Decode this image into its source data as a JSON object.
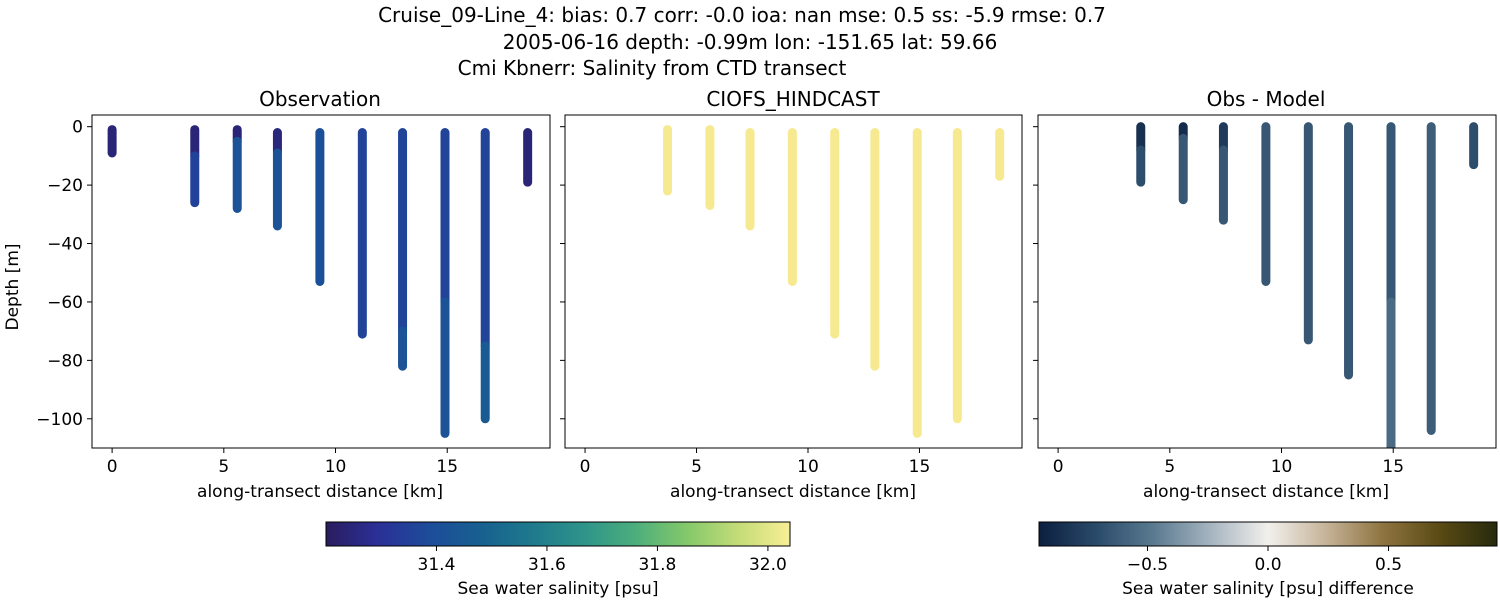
{
  "figure": {
    "title_lines": [
      "Cruise_09-Line_4: bias: 0.7  corr: -0.0  ioa: nan  mse: 0.5  ss: -5.9  rmse: 0.7",
      "2005-06-16 depth: -0.99m lon: -151.65 lat: 59.66",
      "Cmi Kbnerr: Salinity from CTD transect"
    ]
  },
  "colors": {
    "salinity_cmap": [
      "#2a1d5e",
      "#2b2f97",
      "#1d4c9a",
      "#176090",
      "#1e7a8c",
      "#2e948a",
      "#4cae7c",
      "#84c86a",
      "#c4dc78",
      "#f8ee96"
    ],
    "diff_cmap": [
      "#0c1f3f",
      "#2a4a6a",
      "#5a7a90",
      "#a6b4c0",
      "#f2f0ec",
      "#c6b49a",
      "#8e7440",
      "#5a4a14",
      "#262a0e"
    ],
    "model_color": "#f7e98f"
  },
  "chart_data": [
    {
      "type": "scatter",
      "title": "Observation",
      "xlabel": "along-transect distance [km]",
      "ylabel": "Depth [m]",
      "xlim": [
        -0.9,
        19.6
      ],
      "ylim": [
        -110,
        4
      ],
      "xticks": [
        0,
        5,
        10,
        15
      ],
      "yticks": [
        0,
        -20,
        -40,
        -60,
        -80,
        -100
      ],
      "series": [
        {
          "x": 0.0,
          "top": -1.0,
          "bottom": -9.0,
          "segments": [
            {
              "to": -9.0,
              "value": 31.24
            }
          ]
        },
        {
          "x": 3.7,
          "top": -1.0,
          "bottom": -26.0,
          "segments": [
            {
              "to": -10.0,
              "value": 31.24
            },
            {
              "to": -26.0,
              "value": 31.35
            }
          ]
        },
        {
          "x": 5.6,
          "top": -1.0,
          "bottom": -28.0,
          "segments": [
            {
              "to": -5.0,
              "value": 31.24
            },
            {
              "to": -28.0,
              "value": 31.42
            }
          ]
        },
        {
          "x": 7.4,
          "top": -2.0,
          "bottom": -34.0,
          "segments": [
            {
              "to": -9.0,
              "value": 31.25
            },
            {
              "to": -34.0,
              "value": 31.42
            }
          ]
        },
        {
          "x": 9.3,
          "top": -2.0,
          "bottom": -53.0,
          "segments": [
            {
              "to": -53.0,
              "value": 31.4
            }
          ]
        },
        {
          "x": 11.2,
          "top": -2.0,
          "bottom": -71.0,
          "segments": [
            {
              "to": -71.0,
              "value": 31.36
            }
          ]
        },
        {
          "x": 13.0,
          "top": -2.0,
          "bottom": -82.0,
          "segments": [
            {
              "to": -70.0,
              "value": 31.36
            },
            {
              "to": -82.0,
              "value": 31.42
            }
          ]
        },
        {
          "x": 14.9,
          "top": -2.0,
          "bottom": -105.0,
          "segments": [
            {
              "to": -60.0,
              "value": 31.36
            },
            {
              "to": -105.0,
              "value": 31.42
            }
          ]
        },
        {
          "x": 16.7,
          "top": -2.0,
          "bottom": -100.0,
          "segments": [
            {
              "to": -75.0,
              "value": 31.36
            },
            {
              "to": -100.0,
              "value": 31.45
            }
          ]
        },
        {
          "x": 18.6,
          "top": -2.0,
          "bottom": -19.0,
          "segments": [
            {
              "to": -19.0,
              "value": 31.24
            }
          ]
        }
      ],
      "colorbar": {
        "label": "Sea water salinity [psu]",
        "range": [
          31.2,
          32.04
        ],
        "ticks": [
          "31.4",
          "31.6",
          "31.8",
          "32.0"
        ]
      }
    },
    {
      "type": "scatter",
      "title": "CIOFS_HINDCAST",
      "xlabel": "along-transect distance [km]",
      "xlim": [
        -0.9,
        19.6
      ],
      "ylim": [
        -110,
        4
      ],
      "xticks": [
        0,
        5,
        10,
        15
      ],
      "series": [
        {
          "x": 3.7,
          "top": -1.0,
          "bottom": -22.0,
          "value": 32.0
        },
        {
          "x": 5.6,
          "top": -1.0,
          "bottom": -27.0,
          "value": 32.0
        },
        {
          "x": 7.4,
          "top": -2.0,
          "bottom": -34.0,
          "value": 32.0
        },
        {
          "x": 9.3,
          "top": -2.0,
          "bottom": -53.0,
          "value": 32.0
        },
        {
          "x": 11.2,
          "top": -2.0,
          "bottom": -71.0,
          "value": 32.0
        },
        {
          "x": 13.0,
          "top": -2.0,
          "bottom": -82.0,
          "value": 32.0
        },
        {
          "x": 14.9,
          "top": -2.0,
          "bottom": -105.0,
          "value": 32.0
        },
        {
          "x": 16.7,
          "top": -2.0,
          "bottom": -100.0,
          "value": 32.0
        },
        {
          "x": 18.6,
          "top": -2.0,
          "bottom": -17.0,
          "value": 32.0
        }
      ]
    },
    {
      "type": "scatter",
      "title": "Obs - Model",
      "xlabel": "along-transect distance [km]",
      "xlim": [
        -0.9,
        19.6
      ],
      "ylim": [
        -110,
        4
      ],
      "xticks": [
        0,
        5,
        10,
        15
      ],
      "series": [
        {
          "x": 3.7,
          "top": 0.0,
          "bottom": -19.0,
          "segments": [
            {
              "to": -8.0,
              "value": -0.85
            },
            {
              "to": -19.0,
              "value": -0.7
            }
          ]
        },
        {
          "x": 5.6,
          "top": 0.0,
          "bottom": -25.0,
          "segments": [
            {
              "to": -4.0,
              "value": -0.88
            },
            {
              "to": -25.0,
              "value": -0.65
            }
          ]
        },
        {
          "x": 7.4,
          "top": 0.0,
          "bottom": -32.0,
          "segments": [
            {
              "to": -8.0,
              "value": -0.8
            },
            {
              "to": -32.0,
              "value": -0.65
            }
          ]
        },
        {
          "x": 9.3,
          "top": 0.0,
          "bottom": -53.0,
          "segments": [
            {
              "to": -53.0,
              "value": -0.65
            }
          ]
        },
        {
          "x": 11.2,
          "top": 0.0,
          "bottom": -73.0,
          "segments": [
            {
              "to": -73.0,
              "value": -0.65
            }
          ]
        },
        {
          "x": 13.0,
          "top": 0.0,
          "bottom": -85.0,
          "segments": [
            {
              "to": -85.0,
              "value": -0.65
            }
          ]
        },
        {
          "x": 14.9,
          "top": 0.0,
          "bottom": -112.0,
          "segments": [
            {
              "to": -60.0,
              "value": -0.65
            },
            {
              "to": -112.0,
              "value": -0.55
            }
          ]
        },
        {
          "x": 16.7,
          "top": 0.0,
          "bottom": -104.0,
          "segments": [
            {
              "to": -104.0,
              "value": -0.62
            }
          ]
        },
        {
          "x": 18.6,
          "top": 0.0,
          "bottom": -13.0,
          "segments": [
            {
              "to": -13.0,
              "value": -0.7
            }
          ]
        }
      ],
      "colorbar": {
        "label": "Sea water salinity [psu] difference",
        "range": [
          -0.95,
          0.95
        ],
        "ticks": [
          "−0.5",
          "0.0",
          "0.5"
        ],
        "tick_values": [
          -0.5,
          0.0,
          0.5
        ]
      }
    }
  ]
}
